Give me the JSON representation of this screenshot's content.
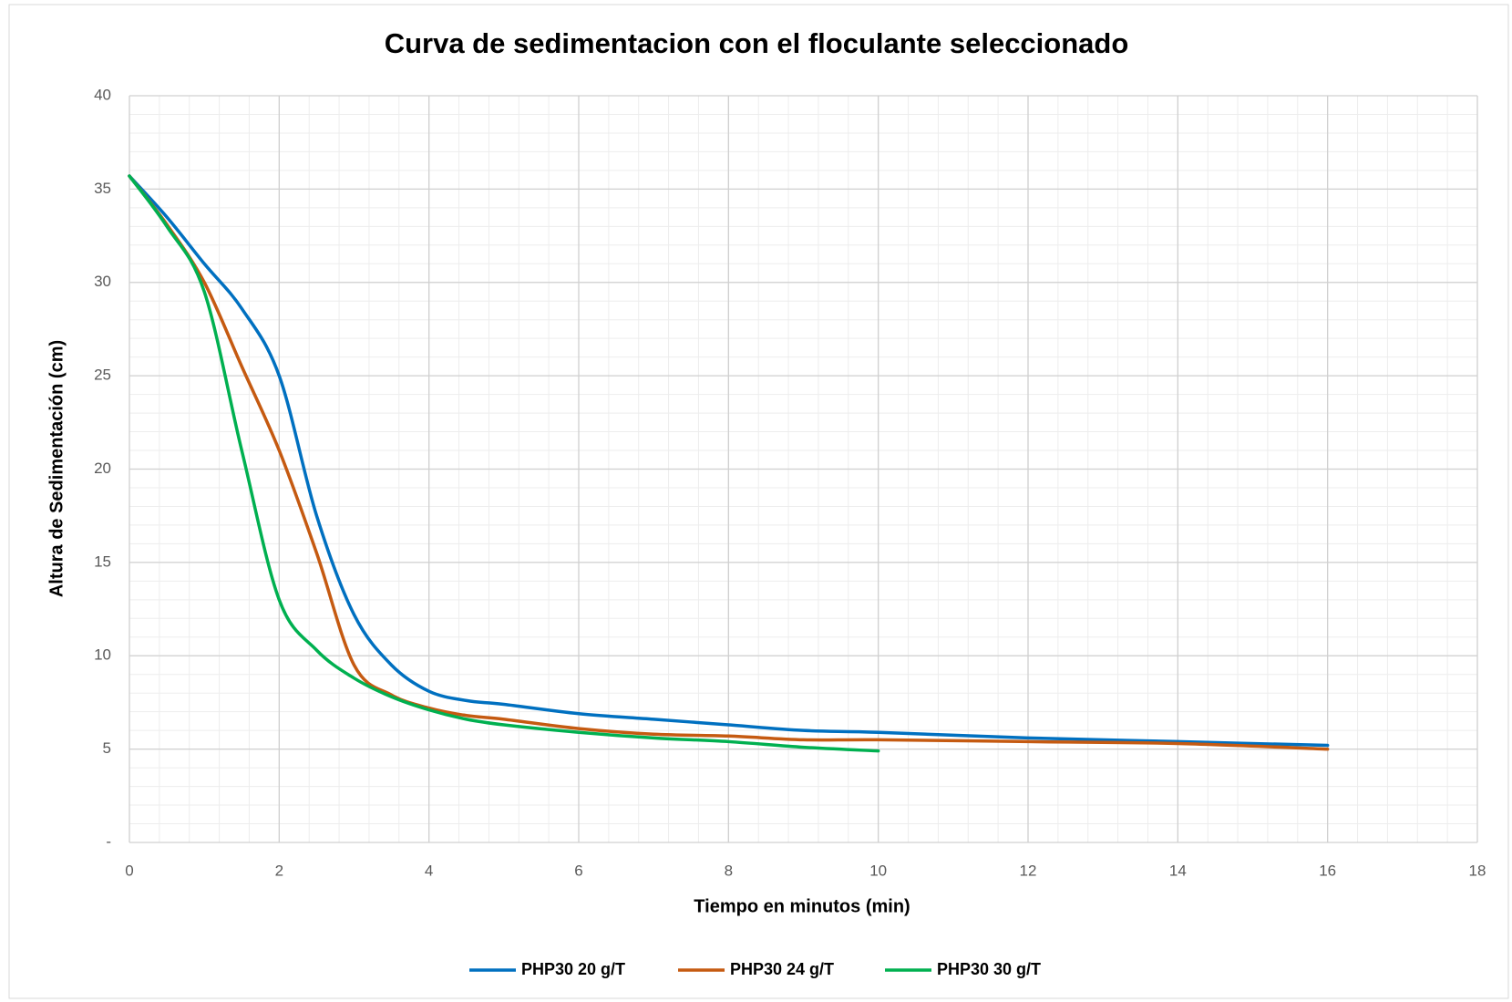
{
  "chart_data": {
    "type": "line",
    "title": "Curva de sedimentacion con el floculante seleccionado",
    "x_label": "Tiempo en minutos (min)",
    "y_label": "Altura de Sedimentación (cm)",
    "xlim": [
      0,
      18
    ],
    "xticks": [
      0,
      2,
      4,
      6,
      8,
      10,
      12,
      14,
      16,
      18
    ],
    "ylim": [
      0,
      40
    ],
    "yticks": [
      {
        "value": 0,
        "label": "-"
      },
      5,
      10,
      15,
      20,
      25,
      30,
      35,
      40
    ],
    "grid": true,
    "minor_xstep": 0.4,
    "minor_ystep": 1,
    "smooth": true,
    "legend": "bottom",
    "series": [
      {
        "name": "PHP30 20 g/T",
        "color": "#0070c0",
        "x": [
          0,
          0.5,
          1,
          1.5,
          2,
          2.5,
          3,
          3.5,
          4,
          4.5,
          5,
          6,
          7,
          8,
          9,
          10,
          12,
          14,
          16
        ],
        "values": [
          35.7,
          33.5,
          31,
          28.6,
          25,
          17.5,
          12.2,
          9.5,
          8.1,
          7.6,
          7.4,
          6.9,
          6.6,
          6.3,
          6.0,
          5.9,
          5.6,
          5.4,
          5.2
        ]
      },
      {
        "name": "PHP30 24 g/T",
        "color": "#c55a11",
        "x": [
          0,
          0.5,
          1,
          1.5,
          2,
          2.5,
          3,
          3.5,
          4,
          4.5,
          5,
          6,
          7,
          8,
          9,
          10,
          12,
          14,
          16
        ],
        "values": [
          35.7,
          33.1,
          30,
          25.5,
          21,
          15.5,
          9.5,
          7.9,
          7.2,
          6.8,
          6.6,
          6.1,
          5.8,
          5.7,
          5.5,
          5.5,
          5.4,
          5.3,
          5.0
        ]
      },
      {
        "name": "PHP30  30 g/T",
        "color": "#00b050",
        "x": [
          0,
          0.5,
          1,
          1.5,
          2,
          2.5,
          3,
          3.5,
          4,
          4.5,
          5,
          6,
          7,
          8,
          9,
          10
        ],
        "values": [
          35.7,
          33,
          29.5,
          21,
          13,
          10.3,
          8.8,
          7.8,
          7.1,
          6.6,
          6.3,
          5.9,
          5.6,
          5.4,
          5.1,
          4.9
        ]
      }
    ]
  }
}
